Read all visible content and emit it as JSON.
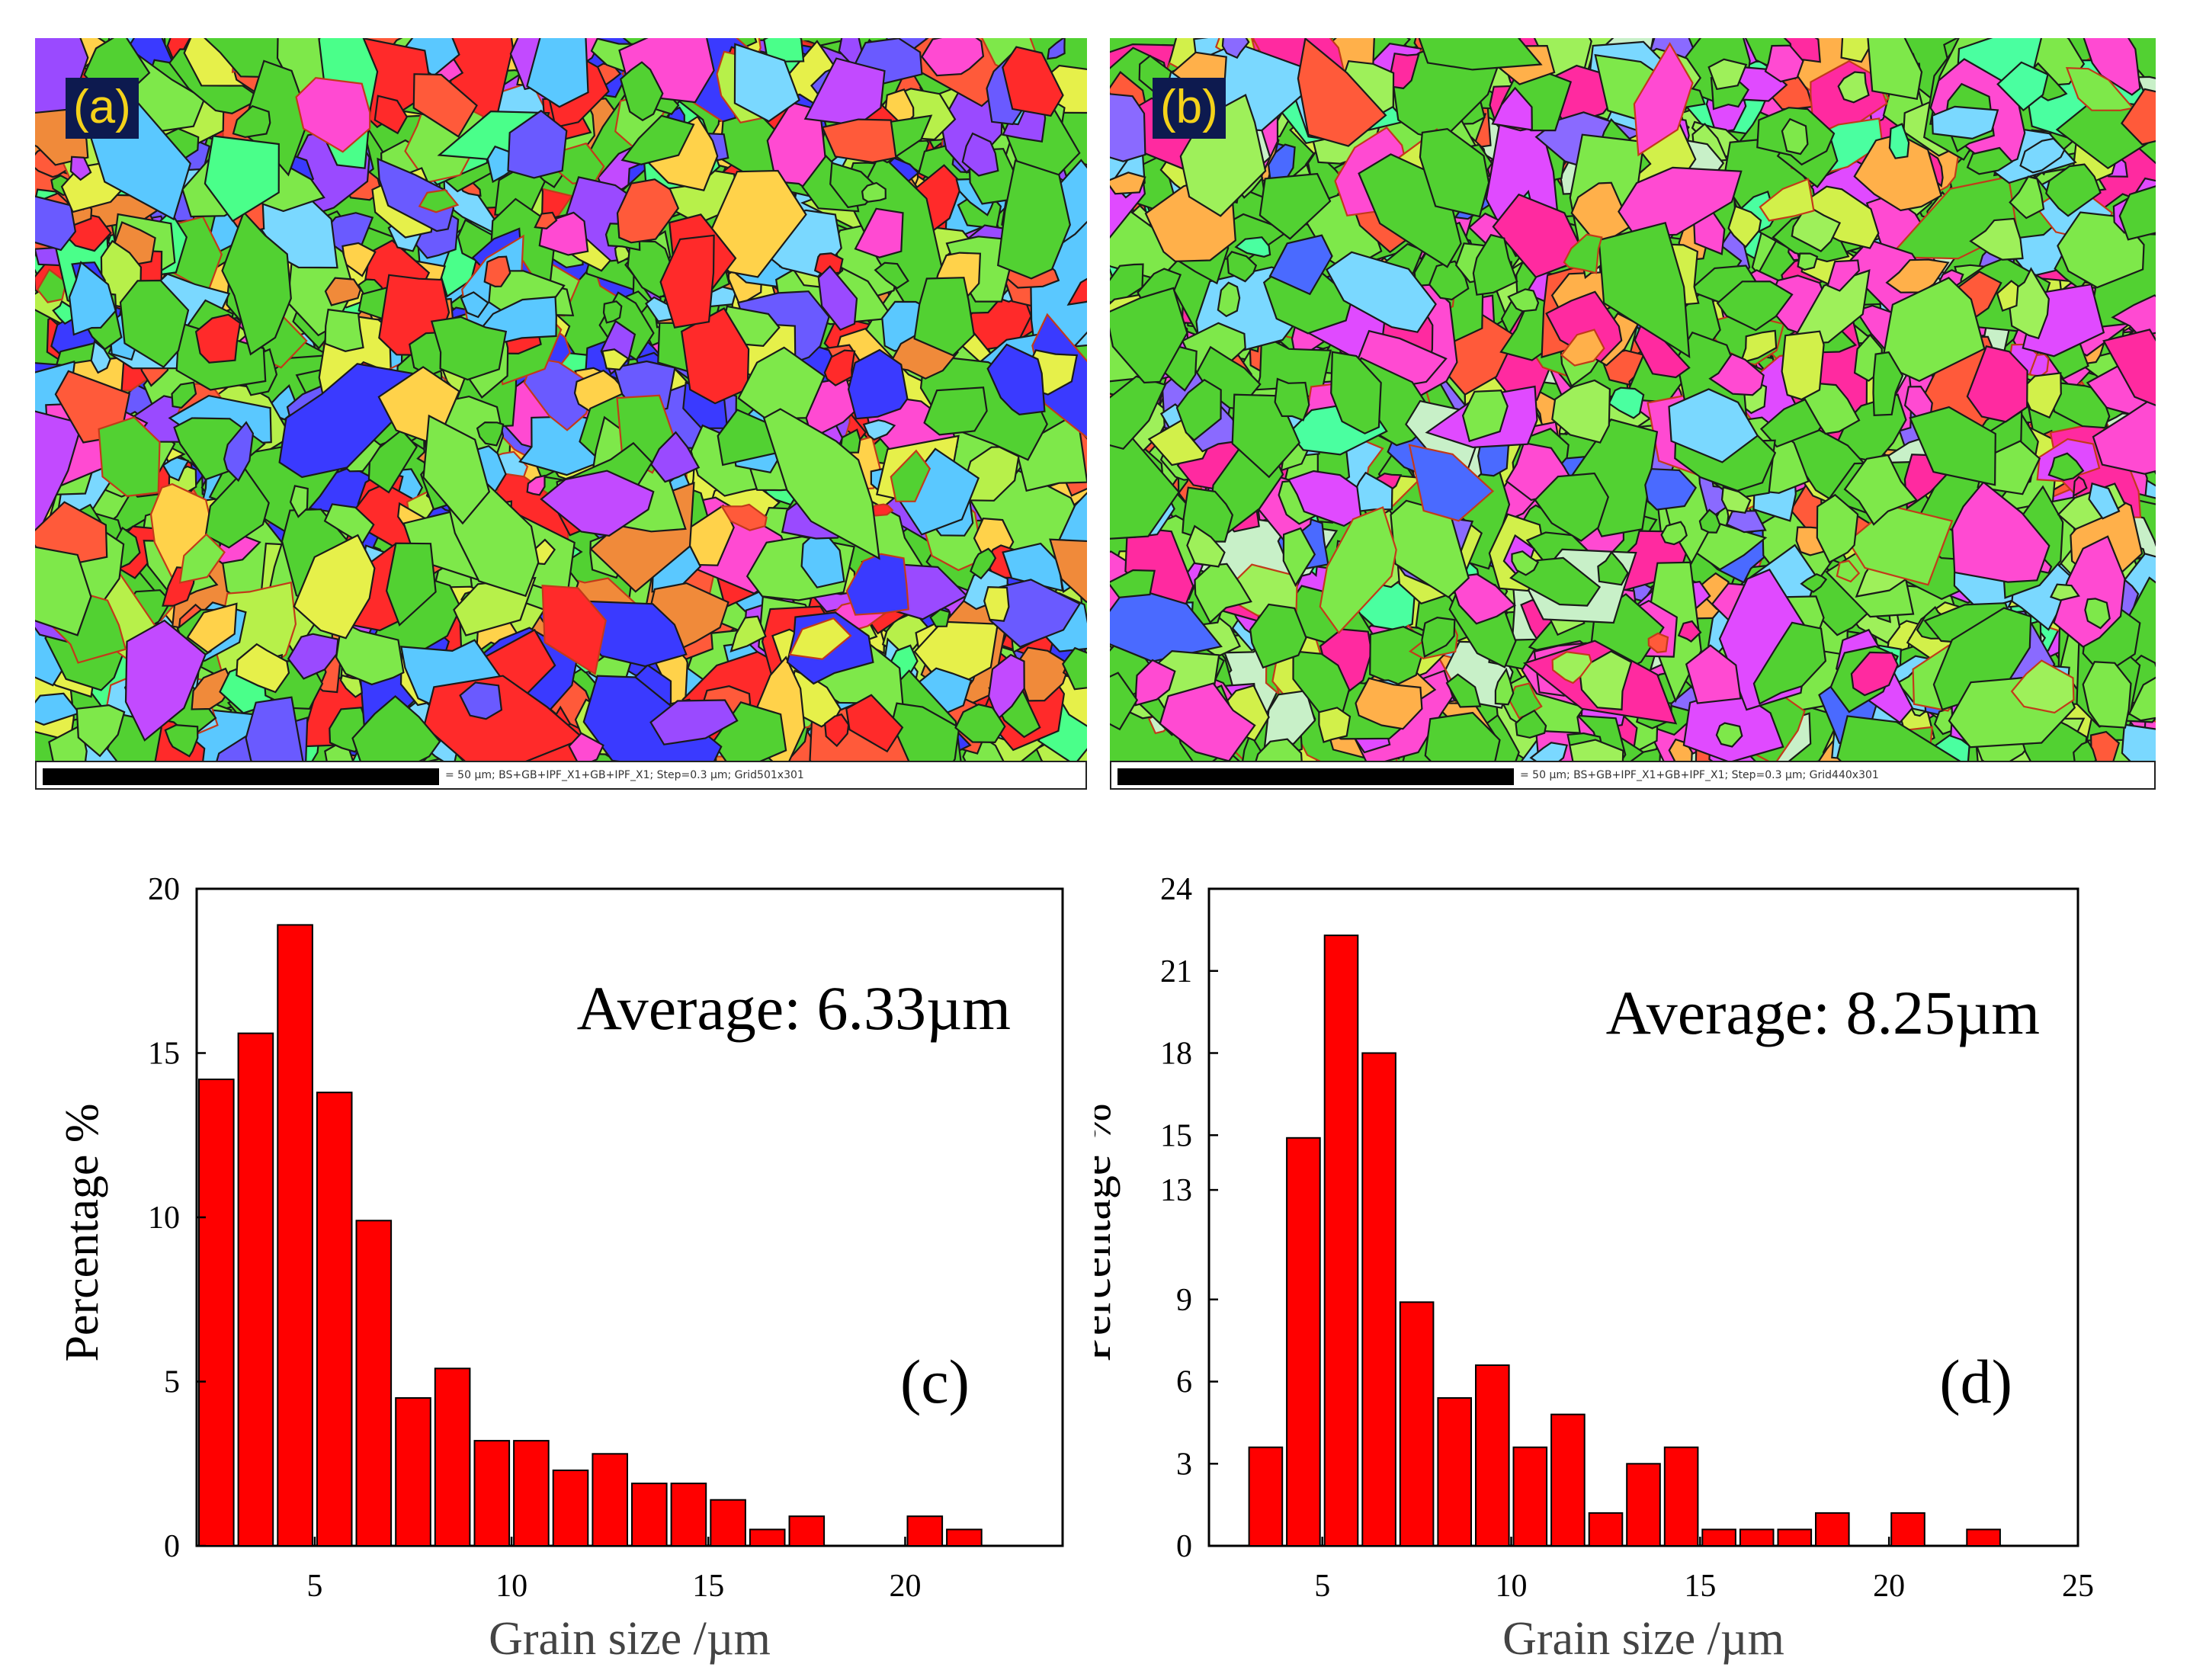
{
  "maps": [
    {
      "label": "(a)",
      "scale_caption": "= 50 µm; BS+GB+IPF_X1+GB+IPF_X1; Step=0.3 µm; Grid501x301"
    },
    {
      "label": "(b)",
      "scale_caption": "= 50 µm; BS+GB+IPF_X1+GB+IPF_X1; Step=0.3 µm; Grid440x301"
    }
  ],
  "chart_data": [
    {
      "type": "bar",
      "panel_label": "(c)",
      "annotation": "Average: 6.33µm",
      "xlabel": "Grain size /µm",
      "ylabel": "Percentage %",
      "xlim": [
        2,
        24
      ],
      "ylim": [
        0,
        20
      ],
      "xticks": [
        5,
        10,
        15,
        20
      ],
      "yticks": [
        0,
        5,
        10,
        15,
        20
      ],
      "x": [
        2.5,
        3.5,
        4.5,
        5.5,
        6.5,
        7.5,
        8.5,
        9.5,
        10.5,
        11.5,
        12.5,
        13.5,
        14.5,
        15.5,
        16.5,
        17.5,
        18.5,
        19.5,
        20.5,
        21.5
      ],
      "values": [
        14.2,
        15.6,
        18.9,
        13.8,
        9.9,
        4.5,
        5.4,
        3.2,
        3.2,
        2.3,
        2.8,
        1.9,
        1.9,
        1.4,
        0.5,
        0.9,
        0,
        0,
        0.9,
        0.5
      ],
      "bar_color": "#ff0000"
    },
    {
      "type": "bar",
      "panel_label": "(d)",
      "annotation": "Average: 8.25µm",
      "xlabel": "Grain size /µm",
      "ylabel": "Percentage %",
      "xlim": [
        2,
        25
      ],
      "ylim": [
        0,
        24
      ],
      "xticks": [
        5,
        10,
        15,
        20,
        25
      ],
      "yticks": [
        0,
        3,
        6,
        9,
        13,
        15,
        18,
        21,
        24
      ],
      "x": [
        3.5,
        4.5,
        5.5,
        6.5,
        7.5,
        8.5,
        9.5,
        10.5,
        11.5,
        12.5,
        13.5,
        14.5,
        15.5,
        16.5,
        17.5,
        18.5,
        19.5,
        20.5,
        21.5,
        22.5
      ],
      "values": [
        3.6,
        14.9,
        22.3,
        18.0,
        8.9,
        5.4,
        6.6,
        3.6,
        4.8,
        1.2,
        3.0,
        3.6,
        0.6,
        0.6,
        0.6,
        1.2,
        0,
        1.2,
        0,
        0.6
      ],
      "bar_color": "#ff0000"
    }
  ]
}
